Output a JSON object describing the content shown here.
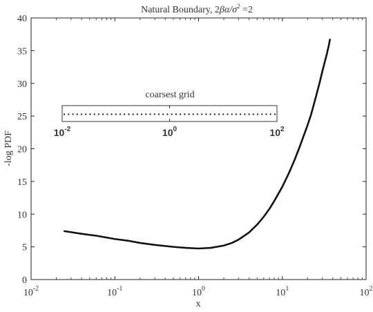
{
  "chart_data": {
    "type": "line",
    "title": "Natural Boundary, 2βα/σ² =2",
    "title_parts": {
      "prefix": "Natural Boundary, 2",
      "beta": "β",
      "alpha": "α",
      "slash": "/",
      "sigma": "σ",
      "sup": "2",
      "suffix": " =2"
    },
    "xlabel": "x",
    "ylabel": "-log PDF",
    "xscale": "log",
    "xlim": [
      0.01,
      100
    ],
    "ylim": [
      0,
      40
    ],
    "grid": false,
    "x_ticks": [
      {
        "base": "10",
        "exp": "-2",
        "value": 0.01
      },
      {
        "base": "10",
        "exp": "-1",
        "value": 0.1
      },
      {
        "base": "10",
        "exp": "0",
        "value": 1
      },
      {
        "base": "10",
        "exp": "1",
        "value": 10
      },
      {
        "base": "10",
        "exp": "2",
        "value": 100
      }
    ],
    "y_ticks": [
      {
        "label": "0",
        "value": 0
      },
      {
        "label": "5",
        "value": 5
      },
      {
        "label": "10",
        "value": 10
      },
      {
        "label": "15",
        "value": 15
      },
      {
        "label": "20",
        "value": 20
      },
      {
        "label": "25",
        "value": 25
      },
      {
        "label": "30",
        "value": 30
      },
      {
        "label": "35",
        "value": 35
      },
      {
        "label": "40",
        "value": 40
      }
    ],
    "series": [
      {
        "color": "#111111",
        "x": [
          0.025,
          0.04,
          0.06,
          0.1,
          0.15,
          0.2,
          0.3,
          0.5,
          0.7,
          1.0,
          1.4,
          2.0,
          2.5,
          3.0,
          4.0,
          5.0,
          6.0,
          7.0,
          8.0,
          10.0,
          12.0,
          14.0,
          16.0,
          18.0,
          20.0,
          22.0,
          25.0,
          28.0,
          30.0,
          32.0,
          34.0,
          36.0,
          37.0
        ],
        "y": [
          7.4,
          7.0,
          6.7,
          6.2,
          5.9,
          5.6,
          5.3,
          5.0,
          4.85,
          4.75,
          4.85,
          5.2,
          5.6,
          6.1,
          7.2,
          8.4,
          9.6,
          10.8,
          12.0,
          14.2,
          16.3,
          18.3,
          20.2,
          22.0,
          23.6,
          25.2,
          27.8,
          30.2,
          31.8,
          33.2,
          34.5,
          35.9,
          36.7
        ]
      }
    ],
    "inset": {
      "title": "coarsest grid",
      "xscale": "log",
      "xlim": [
        0.01,
        100
      ],
      "x_ticks": [
        {
          "base": "10",
          "exp": "-2",
          "value": 0.01
        },
        {
          "base": "10",
          "exp": "0",
          "value": 1
        },
        {
          "base": "10",
          "exp": "2",
          "value": 100
        }
      ],
      "point_style": "dots",
      "point_count": 50
    }
  }
}
